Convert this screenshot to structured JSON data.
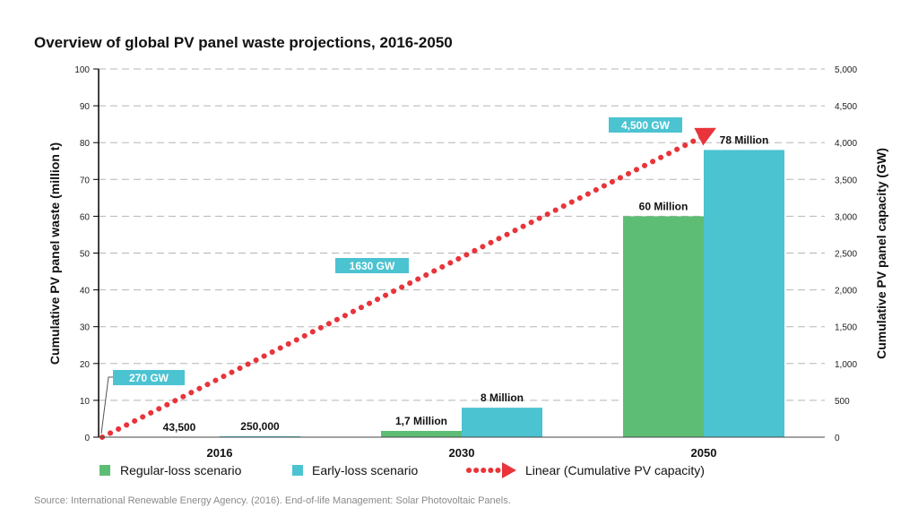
{
  "chart_data": {
    "type": "bar",
    "title": "Overview of global PV panel waste projections, 2016-2050",
    "categories": [
      "2016",
      "2030",
      "2050"
    ],
    "series": [
      {
        "name": "Regular-loss scenario",
        "values": [
          0.0435,
          1.7,
          60
        ],
        "labels": [
          "43,500",
          "1,7 Million",
          "60 Million"
        ],
        "color": "#5dbd74"
      },
      {
        "name": "Early-loss scenario",
        "values": [
          0.25,
          8,
          78
        ],
        "labels": [
          "250,000",
          "8 Million",
          "78 Million"
        ],
        "color": "#4bc3d1"
      }
    ],
    "line": {
      "name": "Linear (Cumulative PV capacity)",
      "color": "#e8343a",
      "start": {
        "x": "2016",
        "y": 0
      },
      "end": {
        "x": "2050",
        "y": 4200
      }
    },
    "callouts": [
      {
        "text": "270 GW",
        "value": 270,
        "category": "2016"
      },
      {
        "text": "1630 GW",
        "value": 1630,
        "category": "2030"
      },
      {
        "text": "4,500 GW",
        "value": 4500,
        "category": "2050"
      }
    ],
    "callout_color": "#4bc3d1",
    "ylabel": "Cumulative PV panel waste (million t)",
    "y2label": "Cumulative PV panel capacity (GW)",
    "ylim": [
      0,
      100
    ],
    "yticks": [
      0,
      10,
      20,
      30,
      40,
      50,
      60,
      70,
      80,
      90,
      100
    ],
    "y2lim": [
      0,
      5000
    ],
    "y2ticks": [
      "0",
      "500",
      "1,000",
      "1,500",
      "2,000",
      "2,500",
      "3,000",
      "3,500",
      "4,000",
      "4,500",
      "5,000"
    ],
    "grid": true,
    "legend_position": "bottom",
    "source": "Source: International Renewable Energy Agency. (2016). End-of-life Management: Solar Photovoltaic Panels."
  }
}
